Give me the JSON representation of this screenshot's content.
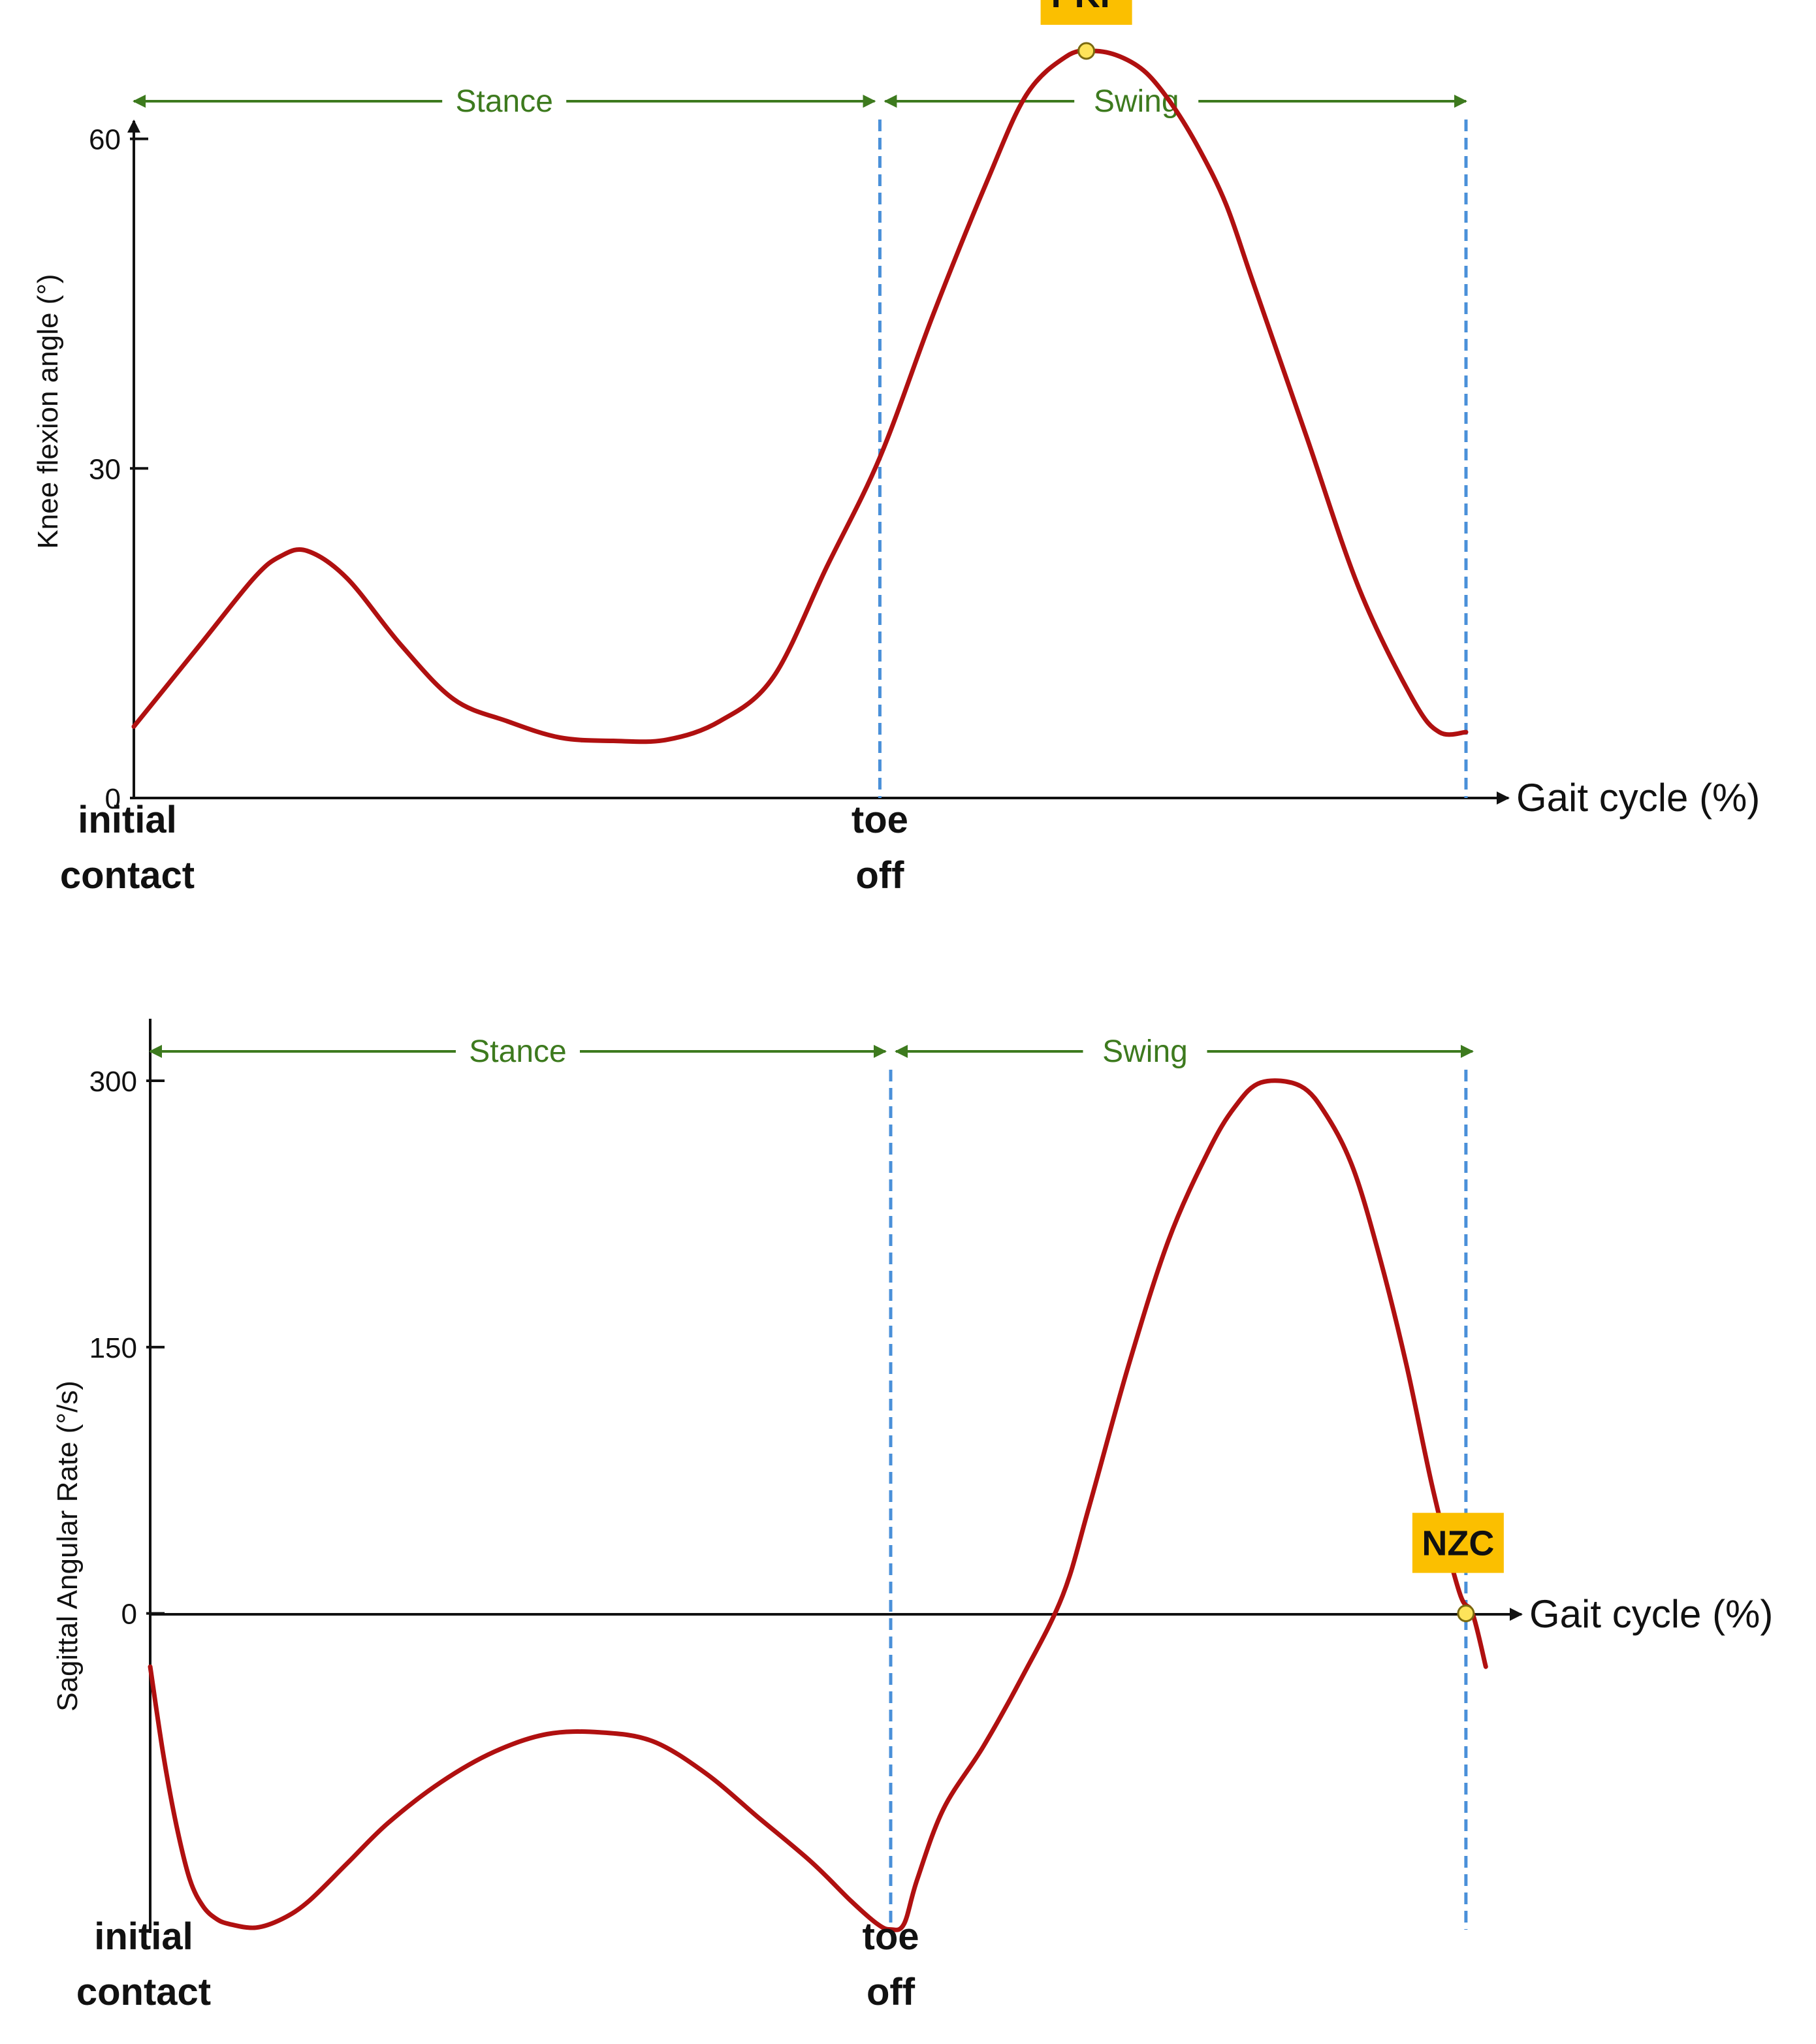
{
  "colors": {
    "curve": "#b01010",
    "phase": "#3d7a1e",
    "dashed": "#4a90d9",
    "badge": "#fbbf00",
    "marker": "#fde35a",
    "axis": "#111111"
  },
  "chart_data": [
    {
      "type": "line",
      "title": "",
      "xlabel": "Gait cycle (%)",
      "ylabel": "Knee flexion angle  (°)",
      "xlim": [
        0,
        100
      ],
      "ylim": [
        0,
        68
      ],
      "yticks": [
        {
          "value": 0,
          "label": "0"
        },
        {
          "value": 30,
          "label": "30"
        },
        {
          "value": 60,
          "label": "60"
        }
      ],
      "grid": false,
      "phases": [
        {
          "label": "Stance",
          "from": 0,
          "to": 56
        },
        {
          "label": "Swing",
          "from": 56,
          "to": 100
        }
      ],
      "event_lines": [
        56,
        100
      ],
      "x_events": [
        {
          "x": 0,
          "line1": "initial",
          "line2": "contact"
        },
        {
          "x": 56,
          "line1": "toe",
          "line2": "off"
        }
      ],
      "series": [
        {
          "name": "Knee flexion angle",
          "x": [
            0,
            5,
            9,
            11,
            13,
            16,
            20,
            24,
            28,
            32,
            36,
            40,
            44,
            48,
            52,
            56,
            60,
            64,
            67,
            70,
            72,
            74,
            76,
            78,
            80,
            82,
            84,
            88,
            92,
            96,
            98,
            100
          ],
          "y": [
            6.5,
            14,
            20,
            22,
            22.5,
            20,
            14,
            9,
            7,
            5.5,
            5.2,
            5.3,
            7,
            11,
            21,
            31,
            44,
            56,
            64,
            67.5,
            68,
            67.5,
            66,
            63,
            59,
            54,
            47,
            33,
            19,
            9,
            6,
            6
          ]
        }
      ],
      "annotations": [
        {
          "label": "PKF",
          "x": 71.5,
          "y": 68
        }
      ]
    },
    {
      "type": "line",
      "title": "",
      "xlabel": "Gait cycle (%)",
      "ylabel": "Sagittal Angular Rate (°/s)",
      "xlim": [
        0,
        100
      ],
      "ylim": [
        -180,
        300
      ],
      "yticks": [
        {
          "value": 0,
          "label": "0"
        },
        {
          "value": 150,
          "label": "150"
        },
        {
          "value": 300,
          "label": "300"
        }
      ],
      "grid": false,
      "phases": [
        {
          "label": "Stance",
          "from": 0,
          "to": 56
        },
        {
          "label": "Swing",
          "from": 56,
          "to": 100
        }
      ],
      "event_lines": [
        56,
        99.5
      ],
      "x_events": [
        {
          "x": 0,
          "line1": "initial",
          "line2": "contact"
        },
        {
          "x": 56,
          "line1": "toe",
          "line2": "off"
        }
      ],
      "series": [
        {
          "name": "Sagittal angular rate",
          "x": [
            0,
            1,
            2,
            3,
            4,
            5,
            6,
            8,
            10,
            12,
            15,
            18,
            22,
            26,
            30,
            34,
            38,
            42,
            46,
            50,
            53,
            55,
            56,
            57,
            58,
            60,
            63,
            66,
            69,
            71,
            74,
            77,
            80,
            82,
            84,
            87,
            89,
            91,
            93,
            95,
            97,
            99,
            100,
            101
          ],
          "y": [
            -30,
            -80,
            -120,
            -150,
            -165,
            -172,
            -175,
            -177,
            -172,
            -162,
            -140,
            -118,
            -95,
            -78,
            -68,
            -67,
            -72,
            -90,
            -115,
            -140,
            -162,
            -175,
            -178,
            -175,
            -150,
            -110,
            -75,
            -35,
            10,
            60,
            140,
            210,
            260,
            285,
            299,
            297,
            280,
            250,
            200,
            140,
            70,
            12,
            0,
            -30
          ]
        }
      ],
      "annotations": [
        {
          "label": "NZC",
          "x": 99.5,
          "y": 0
        }
      ]
    }
  ]
}
